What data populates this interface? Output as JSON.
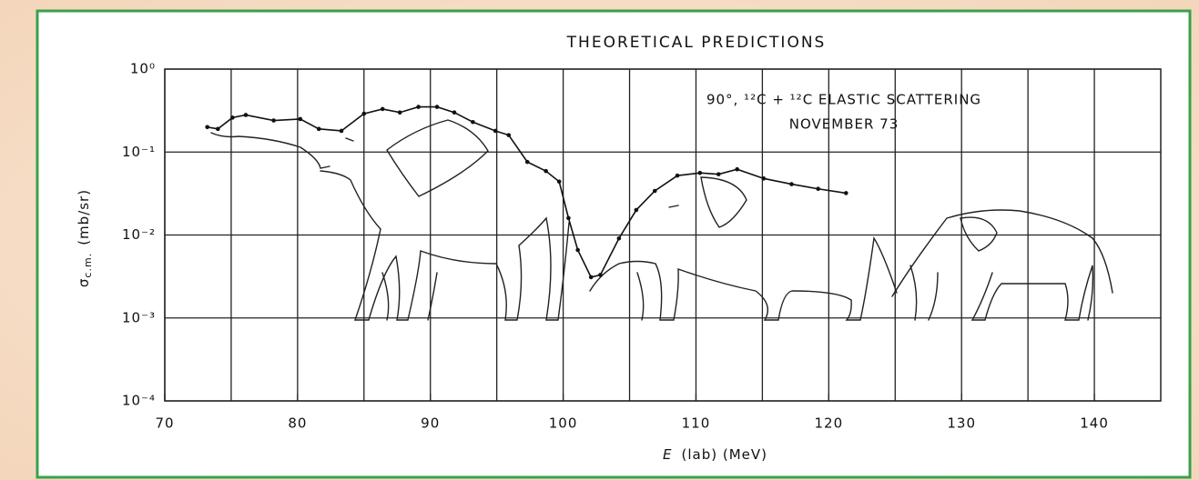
{
  "chart_data": {
    "type": "line",
    "title": "THEORETICAL PREDICTIONS",
    "annotations": [
      "90°, ¹²C + ¹²C ELASTIC SCATTERING",
      "NOVEMBER 73"
    ],
    "xlabel": {
      "symbol": "E",
      "text": "(lab) (MeV)"
    },
    "ylabel": {
      "symbol": "σ",
      "subscript": "c.m.",
      "unit": "(mb/sr)"
    },
    "xlim": [
      70,
      145
    ],
    "xticks": [
      70,
      80,
      90,
      100,
      110,
      120,
      130,
      140
    ],
    "xgrid_minor": [
      75,
      85,
      95,
      105,
      115,
      125,
      135
    ],
    "ylim": [
      0.0001,
      1
    ],
    "yscale": "log",
    "yticks": [
      {
        "value": 1,
        "label": "10⁰"
      },
      {
        "value": 0.1,
        "label": "10⁻¹"
      },
      {
        "value": 0.01,
        "label": "10⁻²"
      },
      {
        "value": 0.001,
        "label": "10⁻³"
      },
      {
        "value": 0.0001,
        "label": "10⁻⁴"
      }
    ],
    "grid": true,
    "series": [
      {
        "color": "#111111",
        "x": [
          73.2,
          74.0,
          75.1,
          76.1,
          78.2,
          80.2,
          81.6,
          83.3,
          85.0,
          86.4,
          87.7,
          89.1,
          90.5,
          91.8,
          93.2,
          94.9,
          95.9,
          97.3,
          98.7,
          99.7,
          100.4,
          101.1,
          102.1,
          102.8,
          104.2,
          105.5,
          106.9,
          108.6,
          110.3,
          111.7,
          113.1,
          115.1,
          117.2,
          119.2,
          121.3
        ],
        "values": [
          0.2,
          0.19,
          0.26,
          0.28,
          0.24,
          0.25,
          0.19,
          0.18,
          0.29,
          0.33,
          0.3,
          0.35,
          0.35,
          0.3,
          0.23,
          0.18,
          0.16,
          0.076,
          0.059,
          0.044,
          0.016,
          0.0066,
          0.0031,
          0.0033,
          0.0091,
          0.02,
          0.034,
          0.052,
          0.056,
          0.054,
          0.062,
          0.048,
          0.041,
          0.036,
          0.032
        ]
      }
    ]
  }
}
